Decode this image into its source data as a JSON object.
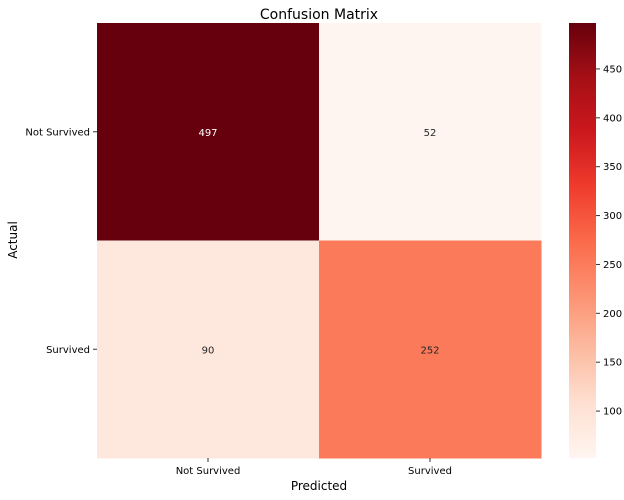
{
  "chart_data": {
    "type": "heatmap",
    "title": "Confusion Matrix",
    "xlabel": "Predicted",
    "ylabel": "Actual",
    "x_categories": [
      "Not Survived",
      "Survived"
    ],
    "y_categories": [
      "Not Survived",
      "Survived"
    ],
    "values": [
      [
        497,
        52
      ],
      [
        90,
        252
      ]
    ],
    "colormap": "Reds",
    "colorbar": {
      "min": 52,
      "max": 497,
      "ticks": [
        "100",
        "150",
        "200",
        "250",
        "300",
        "350",
        "400",
        "450"
      ]
    }
  }
}
